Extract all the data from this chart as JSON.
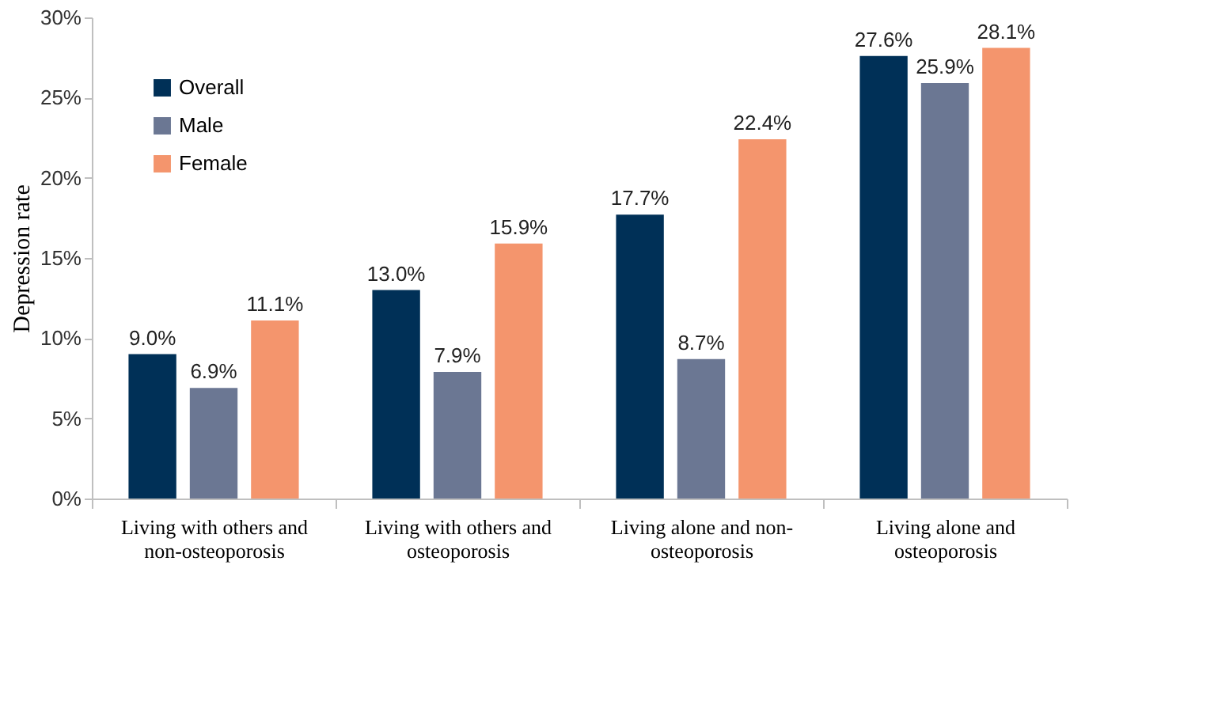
{
  "chart_data": {
    "type": "bar",
    "ylabel": "Depression rate",
    "categories": [
      "Living with others and non-osteoporosis",
      "Living with others and osteoporosis",
      "Living alone and non-osteoporosis",
      "Living alone and osteoporosis"
    ],
    "series": [
      {
        "name": "Overall",
        "color": "#003057",
        "values": [
          9.0,
          13.0,
          17.7,
          27.6
        ],
        "value_labels": [
          "9.0%",
          "13.0%",
          "17.7%",
          "27.6%"
        ]
      },
      {
        "name": "Male",
        "color": "#6b7793",
        "values": [
          6.9,
          7.9,
          8.7,
          25.9
        ],
        "value_labels": [
          "6.9%",
          "7.9%",
          "8.7%",
          "25.9%"
        ]
      },
      {
        "name": "Female",
        "color": "#f4956d",
        "values": [
          11.1,
          15.9,
          22.4,
          28.1
        ],
        "value_labels": [
          "11.1%",
          "15.9%",
          "22.4%",
          "28.1%"
        ]
      }
    ],
    "ylim": [
      0,
      30
    ],
    "yticks": [
      {
        "value": 0,
        "label": "0%"
      },
      {
        "value": 5,
        "label": "5%"
      },
      {
        "value": 10,
        "label": "10%"
      },
      {
        "value": 15,
        "label": "15%"
      },
      {
        "value": 20,
        "label": "20%"
      },
      {
        "value": 25,
        "label": "25%"
      },
      {
        "value": 30,
        "label": "30%"
      }
    ],
    "grid": false,
    "legend": "top left"
  }
}
